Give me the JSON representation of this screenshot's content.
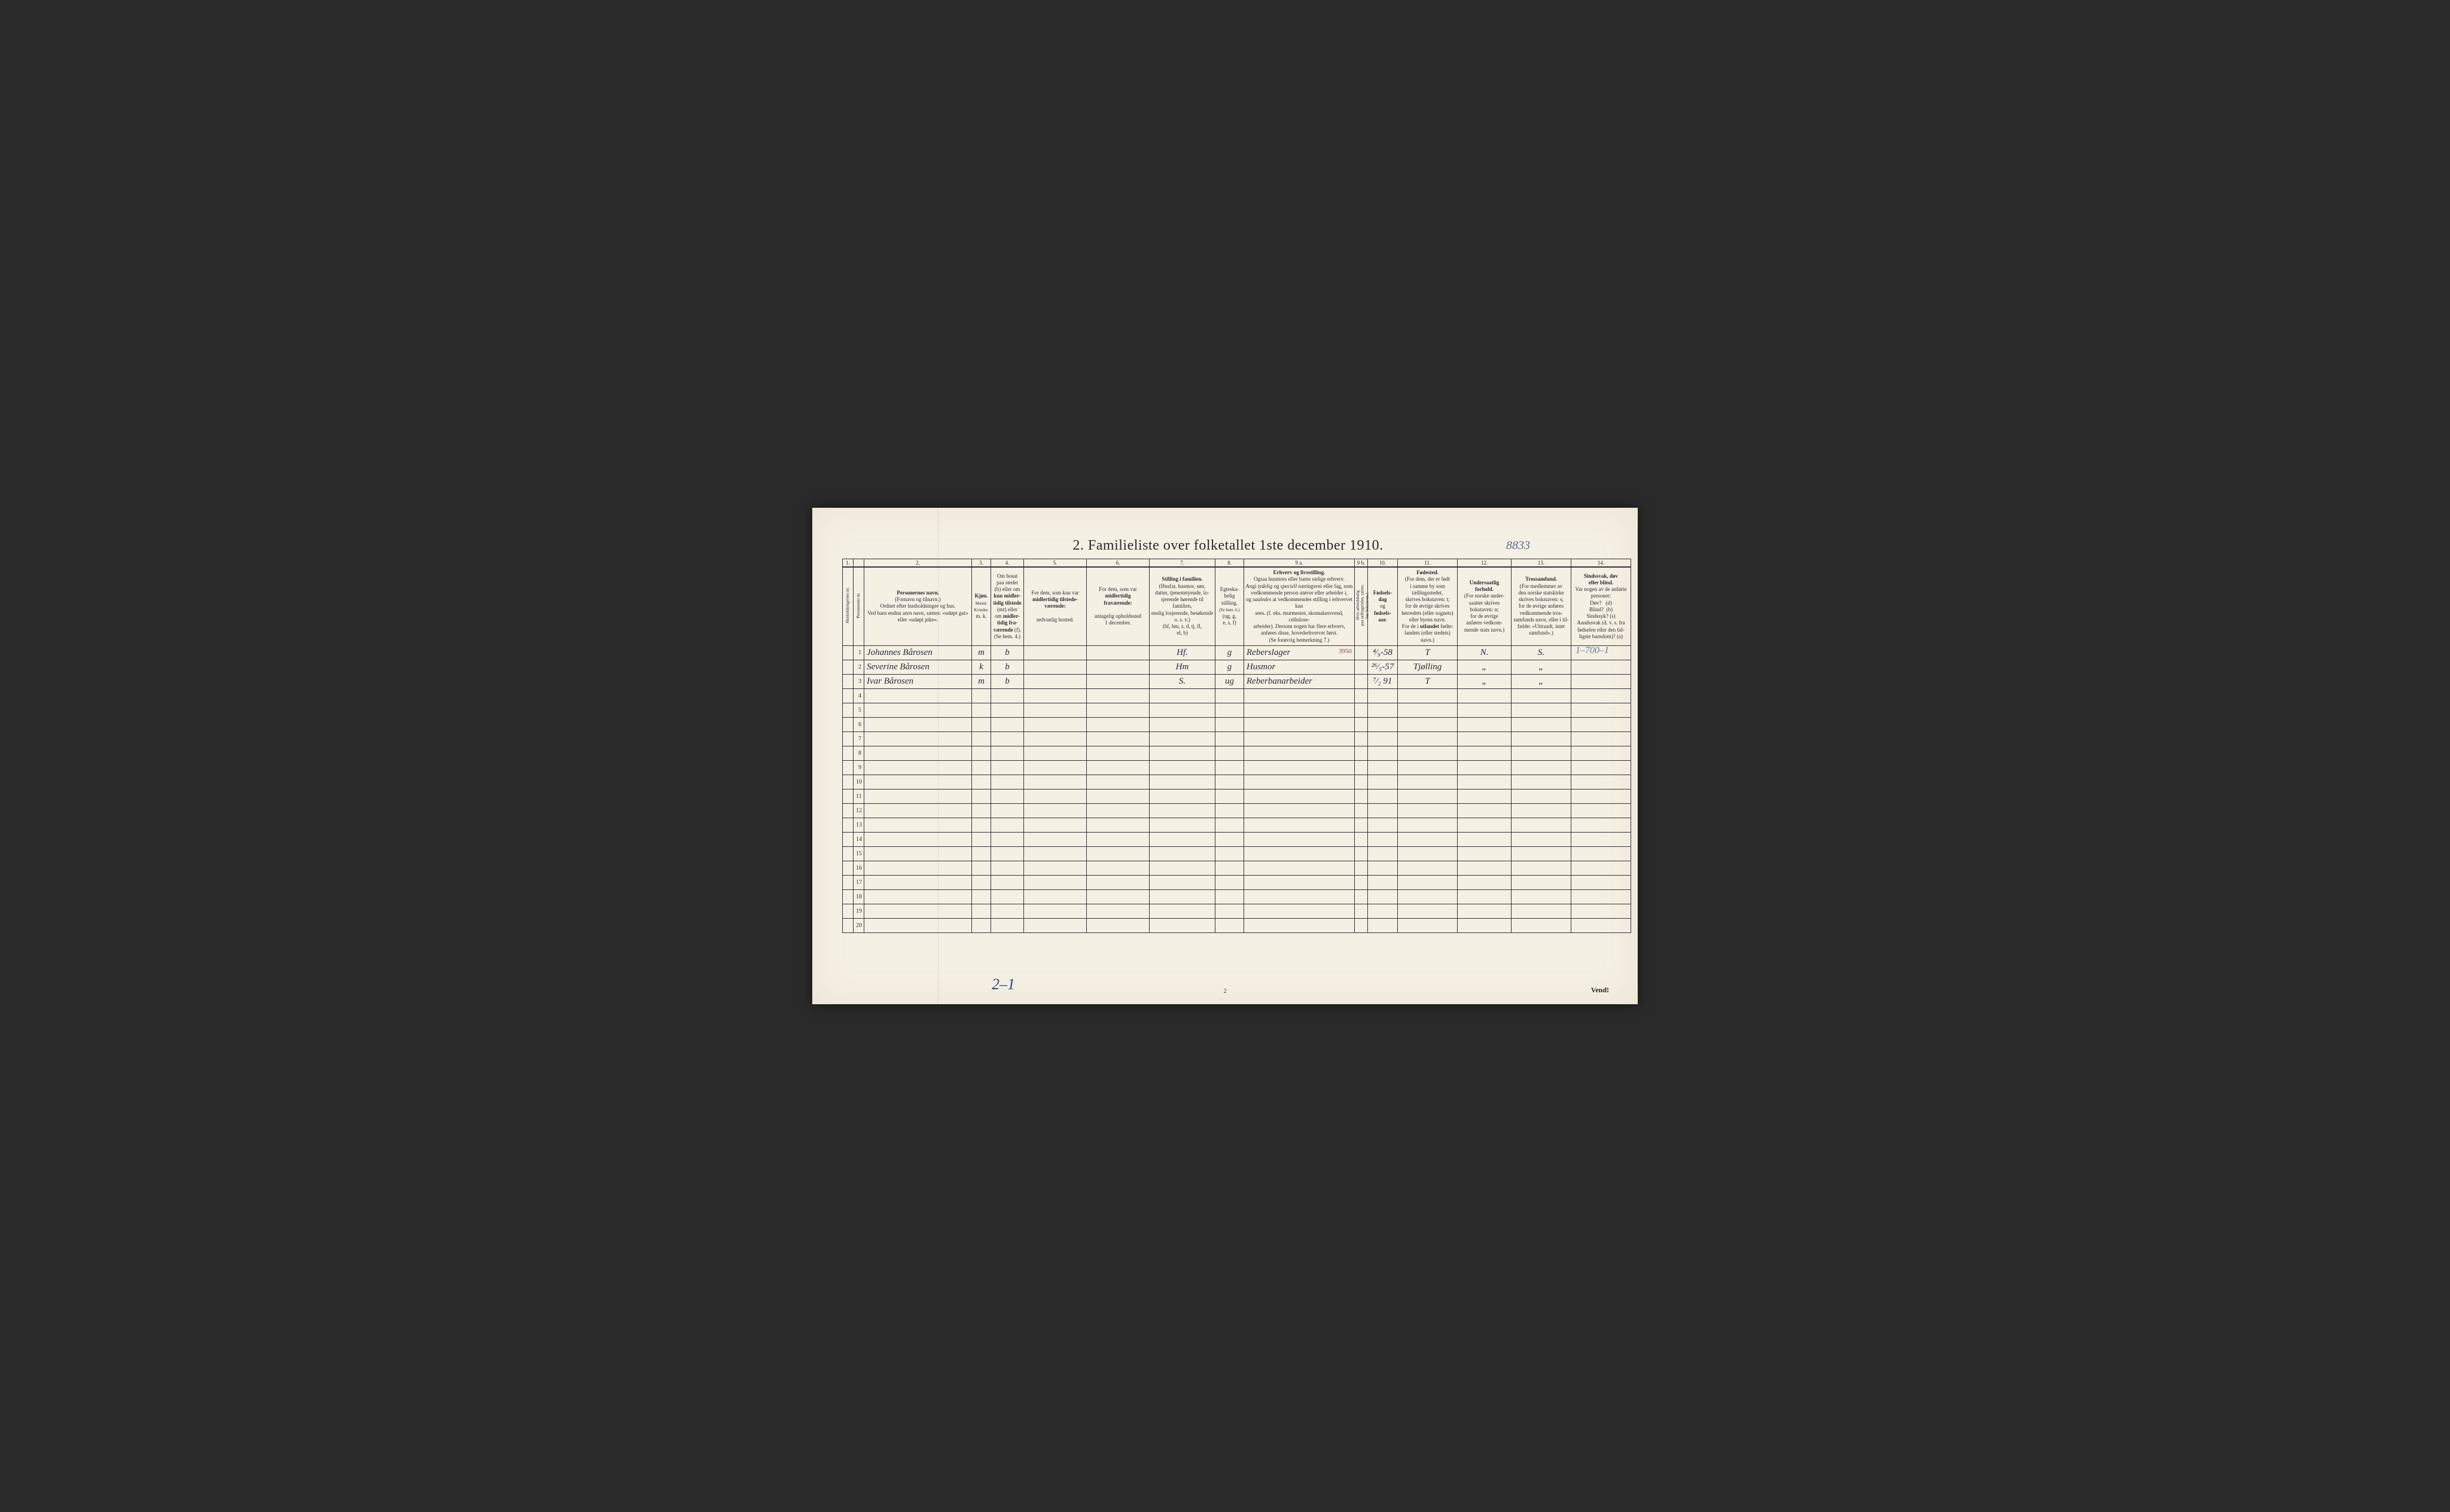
{
  "title": "2.  Familieliste over folketallet 1ste december 1910.",
  "top_annotation": "8833",
  "right_annotation": "1–700–1",
  "bottom_annotation": "2–1",
  "page_number": "2",
  "vend": "Vend!",
  "colnums": [
    "1.",
    "",
    "2.",
    "3.",
    "4.",
    "5.",
    "6.",
    "7.",
    "8.",
    "9 a.",
    "9 b.",
    "10.",
    "11.",
    "12.",
    "13.",
    "14."
  ],
  "headers": {
    "c1": "Husholdningernes nr.",
    "c1b": "Personernes nr.",
    "c2": "<b>Personernes navn.</b><br>(Fornavn og tilnavn.)<br>Ordnet efter husholdninger og hus.<br>Ved barn endnu <i>uten navn</i>, sættes: «udøpt gut»<br>eller «udøpt pike».",
    "c3": "<b>Kjøn.</b><br><span style='font-size:7px'>Mænd.<br>Kvinder.</span><br>m.  k.",
    "c4": "Om bosat<br>paa stedet<br>(b) eller om<br><b>kun midler-<br>tidig tilstede</b><br>(mt) eller<br>om <b>midler-<br>tidig fra-<br>værende</b> (f).<br>(Se bem. 4.)",
    "c5": "For dem, som kun var<br><b>midlertidig tilstede-<br>værende:</b><br><br>sedvanlig bosted.",
    "c6": "For dem, som var<br><b>midlertidig<br>fraværende:</b><br><br>antagelig opholdssted<br>1 december.",
    "c7": "<b>Stilling i familien.</b><br>(Husfar, husmor, søn,<br>datter, tjenestetyende, lo-<br>sjerende hørende til familien,<br>enslig losjerende, besøkende<br>o. s. v.)<br>(hf, hm, s, d, tj, fl,<br>el, b)",
    "c8": "Egteska-<br>belig<br>stilling.<br><span style='font-size:7px'>(Se bem. 6.)</span><br>(ug, g,<br>e, s, f)",
    "c9a": "<b>Erhverv og livsstilling.</b><br>Ogsaa husmors eller barns sælige erhverv.<br>Angi <i>tydelig</i> og <i>speciell</i> næringsvei eller fag, som<br>vedkommende person utøver eller arbeider i,<br>og <i>saaledes</i> at vedkommendes stilling i erhvervet kan<br>sees. (f. eks. murmester, skomakersvend, cellulose-<br>arbeider). Dersom nogen har flere erhverv,<br>anføres disse, hovederhvervet først.<br>(Se forøvrig bemerkning 7.)",
    "c9b": "Hvis arbeidsledig<br>paa tællingstiden, sættes<br>her bokstaven l.",
    "c10": "<b>Fødsels-<br>dag</b><br>og<br><b>fødsels-<br>aar.</b>",
    "c11": "<b>Fødested.</b><br>(For dem, der er født<br>i samme by som<br>tællingsstedet,<br>skrives bokstaven: t;<br>for de øvrige skrives<br>herredets (eller sognets)<br>eller byens navn.<br>For de i <b>utlandet</b> fødte:<br>landets (eller stedets)<br>navn.)",
    "c12": "<b>Undersaatlig<br>forhold.</b><br>(For norske under-<br>saatter skrives<br>bokstaven: n;<br>for de øvrige<br>anføres vedkom-<br>mende stats navn.)",
    "c13": "<b>Trossamfund.</b><br>(For medlemmer av<br>den norske statskirke<br>skrives bokstaven: s;<br>for de øvrige anføres<br>vedkommende tros-<br>samfunds navn, eller i til-<br>fælde: «Uttraadt, intet<br>samfund».)",
    "c14": "<b>Sindssvak, døv<br>eller blind.</b><br>Var nogen av de anførte<br>personer:<br>Døv?&nbsp;&nbsp;&nbsp;(d)<br>Blind?&nbsp;&nbsp;(b)<br>Sindssyk?&nbsp;(s)<br>Aandssvak (d. v. s. fra<br>fødselen eller den tid-<br>ligste barndom)? (a)"
  },
  "widths": {
    "c1": 18,
    "c1b": 18,
    "c2": 180,
    "c3": 32,
    "c4": 55,
    "c5": 105,
    "c6": 105,
    "c7": 110,
    "c8": 48,
    "c9a": 185,
    "c9b": 22,
    "c10": 50,
    "c11": 100,
    "c12": 90,
    "c13": 100,
    "c14": 100
  },
  "rows": [
    {
      "n": "1",
      "name": "Johannes Bårosen",
      "sex": "m",
      "res": "b",
      "pos": "Hf.",
      "mar": "g",
      "occ": "Reberslager",
      "ref": "3950",
      "dob": "⁴⁄₉-58",
      "bp": "T",
      "nat": "N.",
      "rel": "S."
    },
    {
      "n": "2",
      "name": "Severine Bårosen",
      "sex": "k",
      "res": "b",
      "pos": "Hm",
      "mar": "g",
      "occ": "Husmor",
      "ref": "",
      "dob": "²⁶⁄₅-57",
      "bp": "Tjølling",
      "nat": "„",
      "rel": "„"
    },
    {
      "n": "3",
      "name": "Ivar Bårosen",
      "sex": "m",
      "res": "b",
      "pos": "S.",
      "mar": "ug",
      "occ": "Reberbanarbeider",
      "ref": "",
      "dob": "⁷⁄₂ 91",
      "bp": "T",
      "nat": "„",
      "rel": "„"
    }
  ],
  "empty_row_count": 17,
  "colors": {
    "paper": "#f4f0e4",
    "ink": "#2a2a2a",
    "pencil": "#5a6a8a",
    "border": "#333333"
  }
}
